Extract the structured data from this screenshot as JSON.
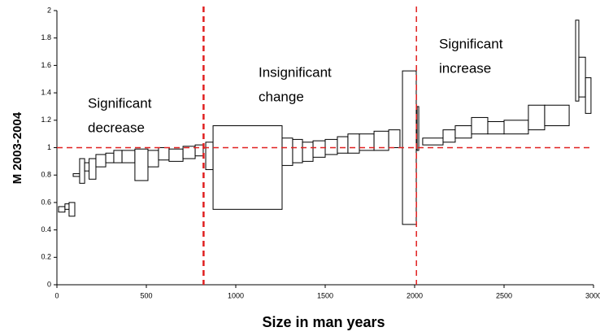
{
  "chart_data": {
    "type": "box-bar",
    "x_label": "Size in man years",
    "y_label": "M 2003-2004",
    "xlim": [
      0,
      3000
    ],
    "ylim": [
      0,
      2
    ],
    "xticks": [
      0,
      500,
      1000,
      1500,
      2000,
      2500,
      3000
    ],
    "yticks": [
      0,
      0.2,
      0.4,
      0.6,
      0.8,
      1,
      1.2,
      1.4,
      1.6,
      1.8,
      2
    ],
    "ref_x": [
      820,
      2010
    ],
    "ref_y": 1,
    "ref_color": "#e02020",
    "box_fill": "#ffffff",
    "box_stroke": "#000000",
    "annotations": [
      [
        "Significant",
        "decrease"
      ],
      [
        "Insignificant",
        "change"
      ],
      [
        "Significant",
        "increase"
      ]
    ],
    "x_start": [
      9,
      45,
      68,
      91,
      127,
      155,
      180,
      218,
      273,
      318,
      364,
      436,
      509,
      568,
      627,
      705,
      773,
      832,
      873,
      1259,
      1318,
      1373,
      1432,
      1500,
      1568,
      1627,
      1691,
      1773,
      1855,
      1932,
      2014,
      2045,
      2159,
      2227,
      2318,
      2409,
      2500,
      2636,
      2727,
      2900,
      2918,
      2955
    ],
    "x_end": [
      45,
      68,
      100,
      127,
      155,
      191,
      218,
      273,
      318,
      364,
      436,
      509,
      568,
      627,
      705,
      773,
      818,
      873,
      1259,
      1318,
      1373,
      1432,
      1500,
      1568,
      1627,
      1691,
      1773,
      1855,
      1918,
      2009,
      2023,
      2159,
      2227,
      2318,
      2409,
      2500,
      2636,
      2727,
      2864,
      2918,
      2955,
      2986
    ],
    "low": [
      0.53,
      0.55,
      0.5,
      0.79,
      0.74,
      0.83,
      0.77,
      0.86,
      0.89,
      0.89,
      0.89,
      0.76,
      0.86,
      0.91,
      0.9,
      0.92,
      0.94,
      0.84,
      0.55,
      0.87,
      0.89,
      0.9,
      0.93,
      0.95,
      0.96,
      0.96,
      0.98,
      0.98,
      1.0,
      0.44,
      0.98,
      1.02,
      1.04,
      1.07,
      1.1,
      1.1,
      1.1,
      1.13,
      1.16,
      1.34,
      1.37,
      1.25
    ],
    "high": [
      0.57,
      0.59,
      0.6,
      0.81,
      0.92,
      0.89,
      0.92,
      0.95,
      0.96,
      0.98,
      0.98,
      0.99,
      0.98,
      1.0,
      0.99,
      1.01,
      1.02,
      1.04,
      1.16,
      1.07,
      1.06,
      1.04,
      1.05,
      1.06,
      1.08,
      1.1,
      1.1,
      1.12,
      1.13,
      1.56,
      1.3,
      1.07,
      1.13,
      1.16,
      1.22,
      1.19,
      1.2,
      1.31,
      1.31,
      1.93,
      1.66,
      1.51
    ]
  }
}
